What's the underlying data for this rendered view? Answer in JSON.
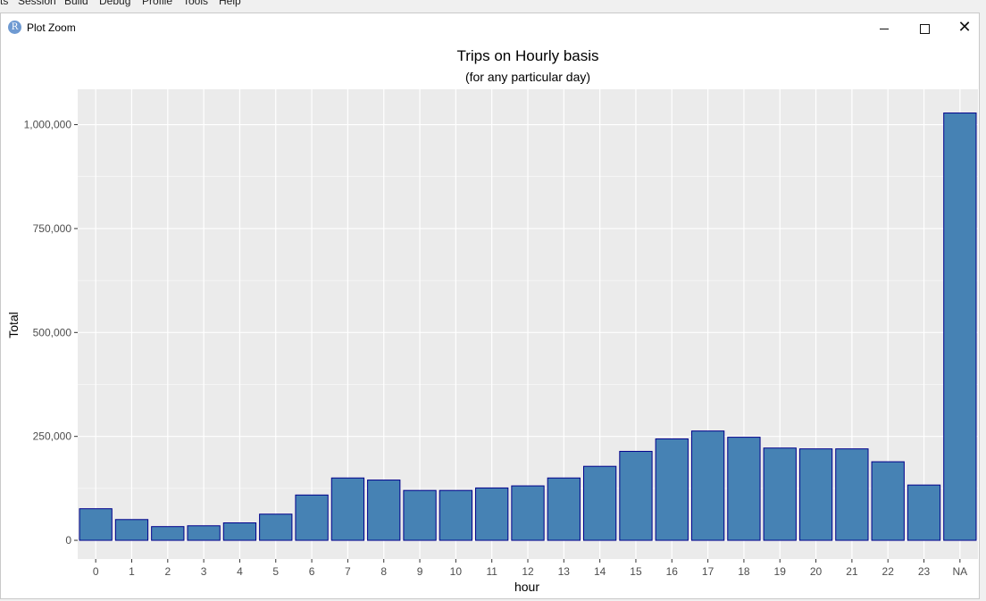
{
  "menubar": {
    "items": [
      "ts",
      "Session",
      "Build",
      "Debug",
      "Profile",
      "Tools",
      "Help"
    ]
  },
  "window": {
    "title": "Plot Zoom",
    "icon_letter": "R",
    "icon": "r-logo-icon",
    "controls": {
      "minimize_icon": "minimize-icon",
      "maximize_icon": "maximize-icon",
      "close_icon": "close-icon"
    }
  },
  "colors": {
    "panel_bg": "#ebebeb",
    "grid": "#ffffff",
    "bar_fill": "#4682b4",
    "bar_outline": "#00008b"
  },
  "chart_data": {
    "type": "bar",
    "title": "Trips on Hourly basis",
    "subtitle": "(for any particular day)",
    "xlabel": "hour",
    "ylabel": "Total",
    "categories": [
      "0",
      "1",
      "2",
      "3",
      "4",
      "5",
      "6",
      "7",
      "8",
      "9",
      "10",
      "11",
      "12",
      "13",
      "14",
      "15",
      "16",
      "17",
      "18",
      "19",
      "20",
      "21",
      "22",
      "23",
      "NA"
    ],
    "values": [
      76000,
      50000,
      33000,
      35000,
      42000,
      63000,
      109000,
      150000,
      145000,
      120000,
      120000,
      126000,
      131000,
      150000,
      178000,
      214000,
      244000,
      263000,
      248000,
      222000,
      220000,
      220000,
      189000,
      133000,
      1028000
    ],
    "ylim": [
      -45000,
      1085000
    ],
    "yticks": [
      0,
      250000,
      500000,
      750000,
      1000000
    ],
    "ytick_labels": [
      "0",
      "250,000",
      "500,000",
      "750,000",
      "1,000,000"
    ],
    "grid": true
  }
}
